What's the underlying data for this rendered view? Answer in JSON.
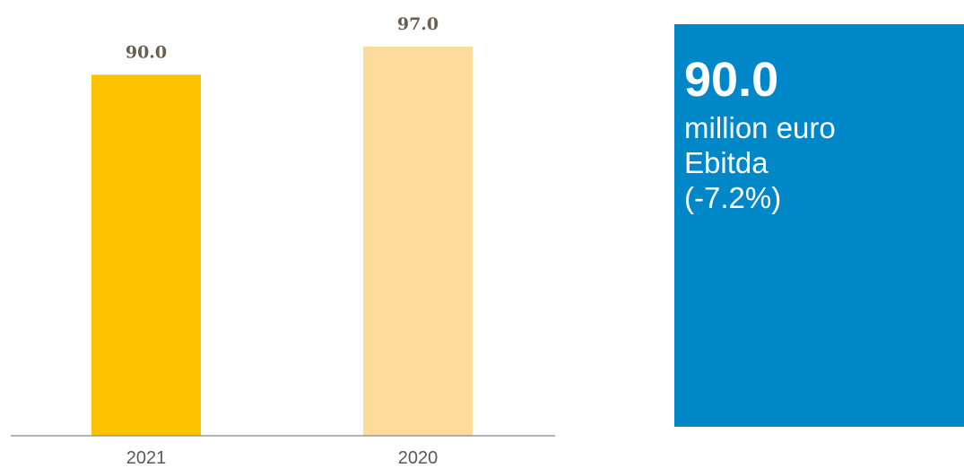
{
  "chart_data": {
    "type": "bar",
    "categories": [
      "2021",
      "2020"
    ],
    "values": [
      90.0,
      97.0
    ],
    "value_labels": [
      "90.0",
      "97.0"
    ],
    "bar_colors": [
      "#FCC200",
      "#FDDC9B"
    ],
    "ylim": [
      0,
      97.0
    ],
    "grid": false,
    "title": "",
    "xlabel": "",
    "ylabel": ""
  },
  "colors": {
    "axis_line": "#888888",
    "value_label": "#6b5e4e",
    "category_label": "#595959",
    "kpi_background": "#0087C8"
  },
  "kpi": {
    "value": "90.0",
    "line1": "million euro",
    "line2": "Ebitda",
    "line3": "(-7.2%)"
  }
}
